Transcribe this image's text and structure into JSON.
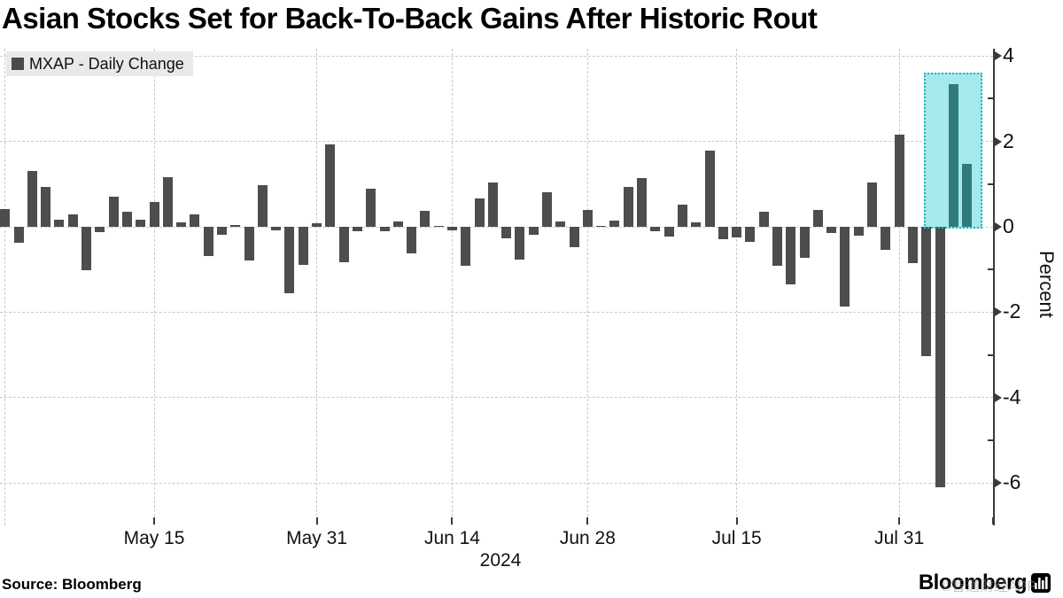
{
  "title": "Asian Stocks Set for Back-To-Back Gains After Historic Rout",
  "legend": {
    "label": "MXAP - Daily Change",
    "swatch_color": "#4a4a4a"
  },
  "source_line": "Source: Bloomberg",
  "logo": {
    "text": "Bloomberg",
    "icon": "bar-chart-icon"
  },
  "watermark": "©智通财经APP",
  "y_axis_title": "Percent",
  "year_label": "2024",
  "chart_data": {
    "type": "bar",
    "series_name": "MXAP - Daily Change",
    "unit": "percent",
    "ylabel": "Percent",
    "ylim": [
      -7,
      4
    ],
    "yticks_labeled": [
      4,
      2,
      0,
      -2,
      -4,
      -6
    ],
    "yticks_minor": [
      3,
      1,
      -1,
      -3,
      -5
    ],
    "grid": "dashed",
    "x_tick_labels": [
      "May 15",
      "May 31",
      "Jun 14",
      "Jun 28",
      "Jul 15",
      "Jul 31"
    ],
    "x_tick_indices": [
      11,
      23,
      33,
      43,
      54,
      66
    ],
    "x_year": "2024",
    "dates": [
      "Apr 30",
      "May 1",
      "May 2",
      "May 3",
      "May 6",
      "May 7",
      "May 8",
      "May 9",
      "May 10",
      "May 13",
      "May 14",
      "May 15",
      "May 16",
      "May 17",
      "May 20",
      "May 21",
      "May 22",
      "May 23",
      "May 24",
      "May 27",
      "May 28",
      "May 29",
      "May 30",
      "May 31",
      "Jun 3",
      "Jun 4",
      "Jun 5",
      "Jun 6",
      "Jun 7",
      "Jun 10",
      "Jun 11",
      "Jun 12",
      "Jun 13",
      "Jun 14",
      "Jun 17",
      "Jun 18",
      "Jun 19",
      "Jun 20",
      "Jun 21",
      "Jun 24",
      "Jun 25",
      "Jun 26",
      "Jun 27",
      "Jun 28",
      "Jul 1",
      "Jul 2",
      "Jul 3",
      "Jul 4",
      "Jul 5",
      "Jul 8",
      "Jul 9",
      "Jul 10",
      "Jul 11",
      "Jul 12",
      "Jul 15",
      "Jul 16",
      "Jul 17",
      "Jul 18",
      "Jul 19",
      "Jul 22",
      "Jul 23",
      "Jul 24",
      "Jul 25",
      "Jul 26",
      "Jul 29",
      "Jul 30",
      "Jul 31",
      "Aug 1",
      "Aug 2",
      "Aug 5",
      "Aug 6",
      "Aug 7"
    ],
    "values": [
      0.41,
      -0.37,
      1.3,
      0.94,
      0.16,
      0.3,
      -1.02,
      -0.12,
      0.71,
      0.35,
      0.17,
      0.59,
      1.16,
      0.1,
      0.3,
      -0.69,
      -0.19,
      0.04,
      -0.79,
      0.98,
      -0.08,
      -1.56,
      -0.89,
      0.09,
      1.92,
      -0.83,
      -0.1,
      0.9,
      -0.1,
      0.12,
      -0.62,
      0.37,
      0.03,
      -0.08,
      -0.91,
      0.66,
      1.04,
      -0.26,
      -0.76,
      -0.19,
      0.8,
      0.12,
      -0.48,
      0.39,
      0.03,
      0.14,
      0.94,
      1.15,
      -0.1,
      -0.22,
      0.52,
      0.1,
      1.78,
      -0.29,
      -0.24,
      -0.36,
      0.35,
      -0.91,
      -1.34,
      -0.73,
      0.4,
      -0.14,
      -1.87,
      -0.21,
      1.04,
      -0.53,
      2.15,
      -0.85,
      -3.03,
      -6.1,
      3.33,
      1.47
    ],
    "bar_color": "#4d4d4d",
    "highlight": {
      "start_index": 70,
      "end_index": 71,
      "highlighted_dates": [
        "Aug 6",
        "Aug 7"
      ],
      "bar_color": "#2e7b7d",
      "fill_color": "#a6e9ed",
      "border_color": "#1db5bc",
      "box_top_value": 3.6
    },
    "layout_hints": {
      "legend_position": "top-left",
      "y_axis_side": "right",
      "extra_gridline_index": 0
    }
  }
}
